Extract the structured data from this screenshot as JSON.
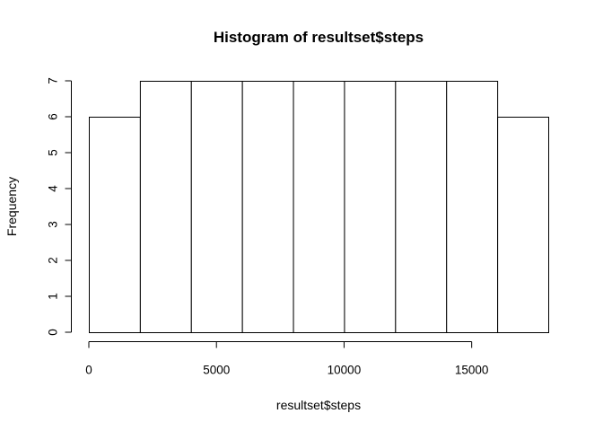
{
  "chart_data": {
    "type": "bar",
    "title": "Histogram of resultset$steps",
    "xlabel": "resultset$steps",
    "ylabel": "Frequency",
    "bins": [
      {
        "start": 0,
        "end": 2000,
        "count": 6
      },
      {
        "start": 2000,
        "end": 4000,
        "count": 7
      },
      {
        "start": 4000,
        "end": 6000,
        "count": 7
      },
      {
        "start": 6000,
        "end": 8000,
        "count": 7
      },
      {
        "start": 8000,
        "end": 10000,
        "count": 7
      },
      {
        "start": 10000,
        "end": 12000,
        "count": 7
      },
      {
        "start": 12000,
        "end": 14000,
        "count": 7
      },
      {
        "start": 14000,
        "end": 16000,
        "count": 7
      },
      {
        "start": 16000,
        "end": 18000,
        "count": 6
      }
    ],
    "x_ticks": [
      0,
      5000,
      10000,
      15000
    ],
    "y_ticks": [
      0,
      1,
      2,
      3,
      4,
      5,
      6,
      7
    ],
    "xlim": [
      0,
      18000
    ],
    "ylim": [
      0,
      7
    ],
    "grid": false,
    "legend": "none",
    "bar_fill": "#ffffff",
    "bar_stroke": "#000000"
  }
}
